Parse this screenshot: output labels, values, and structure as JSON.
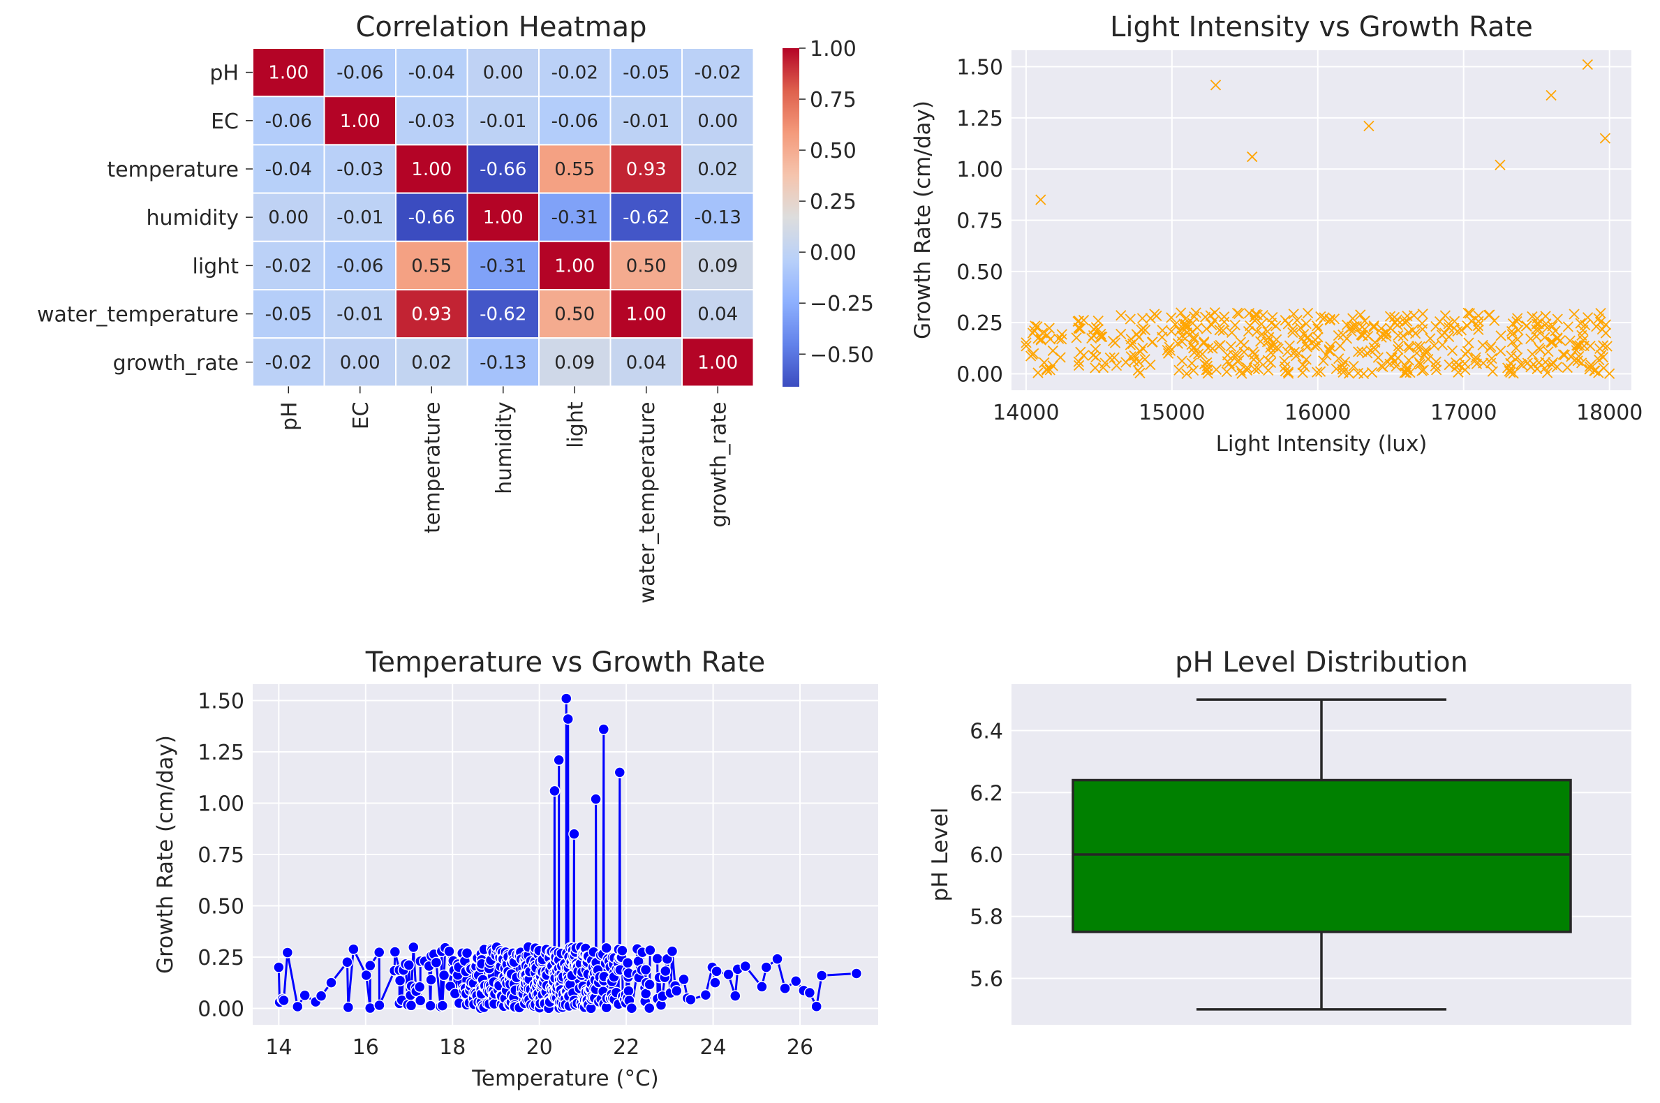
{
  "chart_data": [
    {
      "type": "heatmap",
      "title": "Correlation Heatmap",
      "labels": [
        "pH",
        "EC",
        "temperature",
        "humidity",
        "light",
        "water_temperature",
        "growth_rate"
      ],
      "matrix": [
        [
          1.0,
          -0.06,
          -0.04,
          0.0,
          -0.02,
          -0.05,
          -0.02
        ],
        [
          -0.06,
          1.0,
          -0.03,
          -0.01,
          -0.06,
          -0.01,
          0.0
        ],
        [
          -0.04,
          -0.03,
          1.0,
          -0.66,
          0.55,
          0.93,
          0.02
        ],
        [
          0.0,
          -0.01,
          -0.66,
          1.0,
          -0.31,
          -0.62,
          -0.13
        ],
        [
          -0.02,
          -0.06,
          0.55,
          -0.31,
          1.0,
          0.5,
          0.09
        ],
        [
          -0.05,
          -0.01,
          0.93,
          -0.62,
          0.5,
          1.0,
          0.04
        ],
        [
          -0.02,
          0.0,
          0.02,
          -0.13,
          0.09,
          0.04,
          1.0
        ]
      ],
      "colormap": "coolwarm",
      "vmin": -0.66,
      "vmax": 1.0,
      "colorbar_ticks": [
        "1.00",
        "0.75",
        "0.50",
        "0.25",
        "0.00",
        "−0.25",
        "−0.50"
      ],
      "colorbar_tick_values": [
        1.0,
        0.75,
        0.5,
        0.25,
        0.0,
        -0.25,
        -0.5
      ]
    },
    {
      "type": "scatter",
      "title": "Light Intensity vs Growth Rate",
      "xlabel": "Light Intensity (lux)",
      "ylabel": "Growth Rate (cm/day)",
      "xlim": [
        13900,
        18150
      ],
      "ylim": [
        -0.08,
        1.58
      ],
      "xticks": [
        14000,
        15000,
        16000,
        17000,
        18000
      ],
      "yticks": [
        0.0,
        0.25,
        0.5,
        0.75,
        1.0,
        1.25,
        1.5
      ],
      "marker": "x",
      "color": "#ffa500",
      "outliers": [
        {
          "x": 14100,
          "y": 0.85
        },
        {
          "x": 15300,
          "y": 1.41
        },
        {
          "x": 15550,
          "y": 1.06
        },
        {
          "x": 16350,
          "y": 1.21
        },
        {
          "x": 17250,
          "y": 1.02
        },
        {
          "x": 17600,
          "y": 1.36
        },
        {
          "x": 17850,
          "y": 1.51
        },
        {
          "x": 17970,
          "y": 1.15
        }
      ],
      "bulk": {
        "x_range": [
          14000,
          18000
        ],
        "y_range": [
          0.0,
          0.3
        ],
        "count": 500
      }
    },
    {
      "type": "line",
      "title": "Temperature vs Growth Rate",
      "xlabel": "Temperature (°C)",
      "ylabel": "Growth Rate (cm/day)",
      "xlim": [
        13.4,
        27.8
      ],
      "ylim": [
        -0.08,
        1.58
      ],
      "xticks": [
        14,
        16,
        18,
        20,
        22,
        24,
        26
      ],
      "yticks": [
        0.0,
        0.25,
        0.5,
        0.75,
        1.0,
        1.25,
        1.5
      ],
      "marker": "o",
      "color": "#0000ff",
      "peaks": [
        {
          "x": 20.35,
          "y": 1.06
        },
        {
          "x": 20.45,
          "y": 1.21
        },
        {
          "x": 20.62,
          "y": 1.51
        },
        {
          "x": 20.66,
          "y": 1.41
        },
        {
          "x": 20.8,
          "y": 0.85
        },
        {
          "x": 21.3,
          "y": 1.02
        },
        {
          "x": 21.48,
          "y": 1.36
        },
        {
          "x": 21.85,
          "y": 1.15
        }
      ],
      "bulk": {
        "x_range": [
          14.0,
          27.3
        ],
        "y_range": [
          0.0,
          0.3
        ],
        "count": 500
      }
    },
    {
      "type": "box",
      "title": "pH Level Distribution",
      "ylabel": "pH Level",
      "ylim": [
        5.45,
        6.55
      ],
      "yticks": [
        5.6,
        5.8,
        6.0,
        6.2,
        6.4
      ],
      "whisker_low": 5.5,
      "q1": 5.75,
      "median": 6.0,
      "q3": 6.24,
      "whisker_high": 6.5,
      "color": "#008000"
    }
  ]
}
